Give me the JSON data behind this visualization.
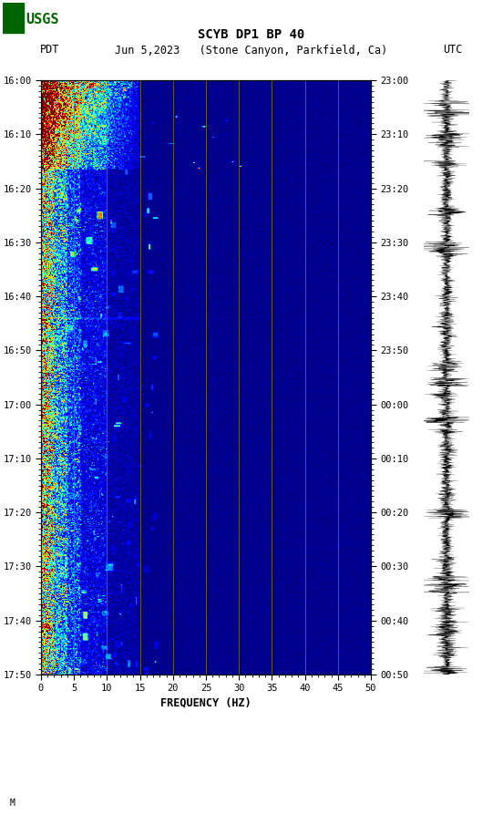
{
  "title_line1": "SCYB DP1 BP 40",
  "title_line2_left": "PDT",
  "title_line2_center": "Jun 5,2023   (Stone Canyon, Parkfield, Ca)",
  "title_line2_right": "UTC",
  "xlabel": "FREQUENCY (HZ)",
  "freq_min": 0,
  "freq_max": 50,
  "freq_ticks": [
    0,
    5,
    10,
    15,
    20,
    25,
    30,
    35,
    40,
    45,
    50
  ],
  "left_time_labels": [
    "16:00",
    "16:10",
    "16:20",
    "16:30",
    "16:40",
    "16:50",
    "17:00",
    "17:10",
    "17:20",
    "17:30",
    "17:40",
    "17:50"
  ],
  "right_time_labels": [
    "23:00",
    "23:10",
    "23:20",
    "23:30",
    "23:40",
    "23:50",
    "00:00",
    "00:10",
    "00:20",
    "00:30",
    "00:40",
    "00:50"
  ],
  "n_time_steps": 660,
  "n_freq_steps": 500,
  "vertical_lines_freq": [
    5,
    10,
    15,
    20,
    25,
    30,
    35,
    40,
    45
  ],
  "bg_color": "#ffffff",
  "wave_color": "#000000",
  "logo_color": "#006400"
}
